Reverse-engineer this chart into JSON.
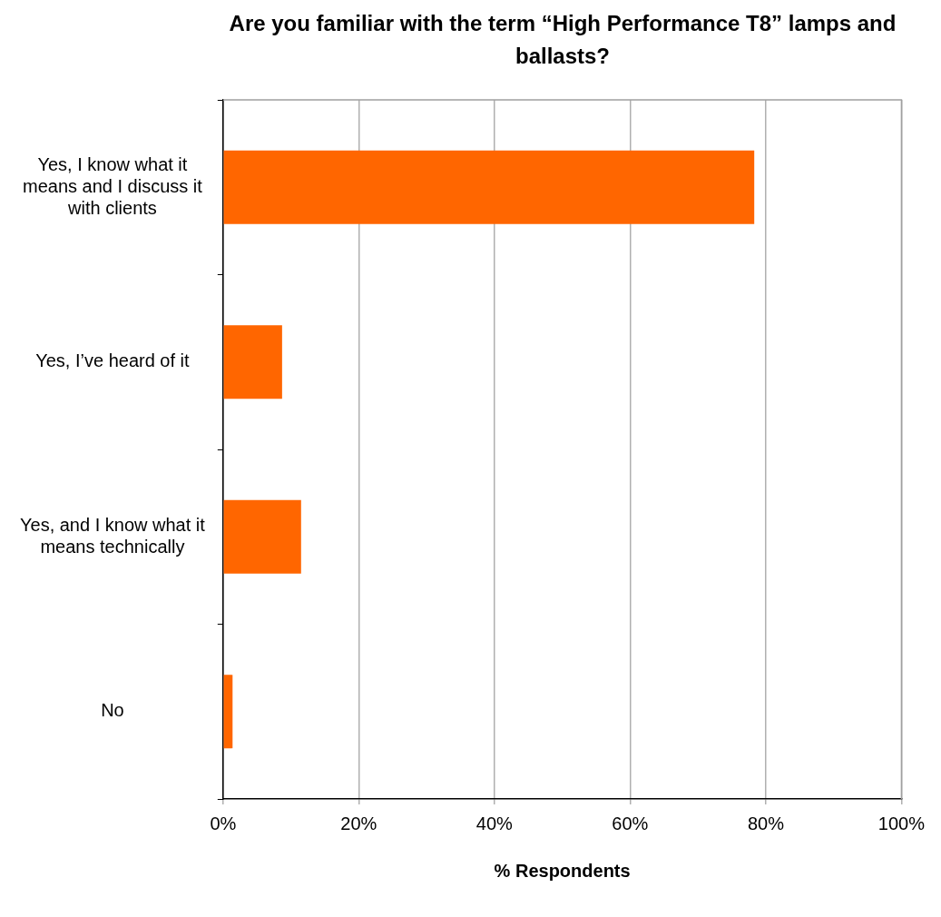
{
  "chart_data": {
    "type": "bar",
    "orientation": "horizontal",
    "title": "Are you familiar with the term “High Performance T8” lamps and ballasts?",
    "xlabel": "% Respondents",
    "categories": [
      "Yes, I know what it means and I discuss it with clients",
      "Yes, I’ve heard of it",
      "Yes, and I know what it means technically",
      "No"
    ],
    "values": [
      78.3,
      8.7,
      11.5,
      1.4
    ],
    "color": "#ff6600",
    "xlim": [
      0,
      100
    ],
    "xticks": [
      {
        "value": 0,
        "label": "0%"
      },
      {
        "value": 20,
        "label": "20%"
      },
      {
        "value": 40,
        "label": "40%"
      },
      {
        "value": 60,
        "label": "60%"
      },
      {
        "value": 80,
        "label": "80%"
      },
      {
        "value": 100,
        "label": "100%"
      }
    ],
    "grid": "x",
    "legend": false
  }
}
